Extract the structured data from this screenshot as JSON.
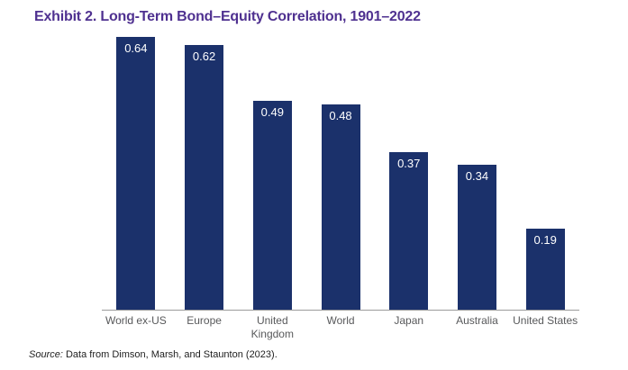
{
  "title": "Exhibit 2. Long-Term Bond–Equity Correlation, 1901–2022",
  "source": {
    "prefix": "Source:",
    "text": " Data from Dimson, Marsh, and Staunton (2023)."
  },
  "colors": {
    "title": "#4F3190",
    "bar": "#1B316B",
    "bar_value_label": "#FFFFFF",
    "axis_line": "#9B9B9B",
    "category_label": "#58595B",
    "source_text": "#1E1E1E",
    "background": "#FFFFFF"
  },
  "chart_data": {
    "type": "bar",
    "title": "Exhibit 2. Long-Term Bond–Equity Correlation, 1901–2022",
    "categories": [
      "World ex-US",
      "Europe",
      "United Kingdom",
      "World",
      "Japan",
      "Australia",
      "United States"
    ],
    "categories_display": [
      "World ex-US",
      "Europe",
      "United\nKingdom",
      "World",
      "Japan",
      "Australia",
      "United States"
    ],
    "values": [
      0.64,
      0.62,
      0.49,
      0.48,
      0.37,
      0.34,
      0.19
    ],
    "value_labels": [
      "0.64",
      "0.62",
      "0.49",
      "0.48",
      "0.37",
      "0.34",
      "0.19"
    ],
    "xlabel": "",
    "ylabel": "",
    "ylim": [
      0,
      0.65
    ],
    "grid": false,
    "legend": false,
    "value_labels_position": "inside-top",
    "annotation": "Source: Data from Dimson, Marsh, and Staunton (2023)."
  }
}
